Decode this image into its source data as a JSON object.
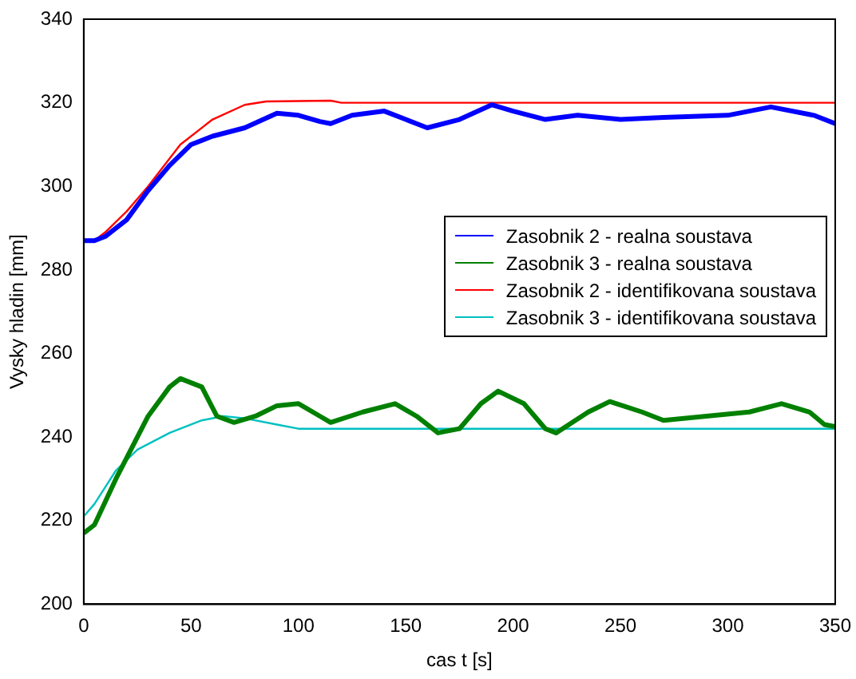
{
  "chart_data": {
    "type": "line",
    "xlabel": "cas t [s]",
    "ylabel": "Vysky hladin [mm]",
    "xlim": [
      0,
      350
    ],
    "xticks": [
      0,
      50,
      100,
      150,
      200,
      250,
      300,
      350
    ],
    "ylim": [
      200,
      340
    ],
    "yticks": [
      200,
      220,
      240,
      260,
      280,
      300,
      320,
      340
    ],
    "grid": false,
    "legend": "right",
    "marker": "none",
    "line_style": "solid",
    "series": [
      {
        "name": "Zasobnik 2 - realna soustava",
        "color": "#0000ff",
        "x": [
          0,
          5,
          10,
          20,
          30,
          40,
          50,
          60,
          75,
          90,
          100,
          110,
          115,
          125,
          140,
          150,
          160,
          175,
          190,
          200,
          215,
          230,
          250,
          270,
          300,
          320,
          340,
          350
        ],
        "values": [
          287,
          287,
          288,
          292,
          299,
          305,
          310,
          312,
          314,
          317.5,
          317,
          315.5,
          315,
          317,
          318,
          316,
          314,
          316,
          319.5,
          318,
          316,
          317,
          316,
          316.5,
          317,
          319,
          317,
          315
        ]
      },
      {
        "name": "Zasobnik 3 - realna soustava",
        "color": "#008000",
        "x": [
          0,
          5,
          15,
          30,
          40,
          45,
          55,
          62,
          70,
          80,
          90,
          100,
          110,
          115,
          130,
          145,
          155,
          165,
          175,
          185,
          193,
          205,
          215,
          220,
          235,
          245,
          260,
          270,
          290,
          310,
          325,
          338,
          345,
          350
        ],
        "values": [
          217,
          219,
          230,
          245,
          252,
          254,
          252,
          245,
          243.5,
          245,
          247.5,
          248,
          245,
          243.5,
          246,
          248,
          245,
          241,
          242,
          248,
          251,
          248,
          242,
          241,
          246,
          248.5,
          246,
          244,
          245,
          246,
          248,
          246,
          243,
          242.5
        ]
      },
      {
        "name": "Zasobnik 2 - identifikovana soustava",
        "color": "#ff0000",
        "x": [
          5,
          10,
          20,
          30,
          45,
          60,
          75,
          85,
          115,
          120,
          350
        ],
        "values": [
          287,
          289,
          294,
          300,
          310,
          316,
          319.5,
          320.3,
          320.5,
          320,
          320
        ]
      },
      {
        "name": "Zasobnik 3 - identifikovana soustava",
        "color": "#00c0c0",
        "x": [
          0,
          5,
          15,
          25,
          40,
          55,
          65,
          75,
          90,
          100,
          350
        ],
        "values": [
          221,
          224,
          232,
          237,
          241,
          244,
          245,
          244.5,
          243,
          242,
          242
        ]
      }
    ]
  }
}
